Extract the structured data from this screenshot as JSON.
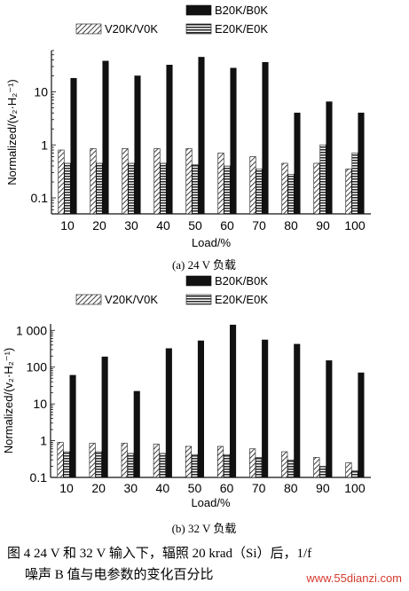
{
  "chart_data": [
    {
      "type": "bar",
      "scale": "log",
      "ylim": [
        0.05,
        60
      ],
      "yticks": [
        "0.1",
        "1",
        "10"
      ],
      "xlabel": "Load/%",
      "ylabel": "Normalized/(v₂·H₂⁻¹)",
      "caption": "(a) 24 V 负载",
      "categories": [
        "10",
        "20",
        "30",
        "40",
        "50",
        "60",
        "70",
        "80",
        "90",
        "100"
      ],
      "series": [
        {
          "name": "V20K/V0K",
          "pattern": "hatch",
          "values": [
            0.8,
            0.85,
            0.85,
            0.85,
            0.85,
            0.7,
            0.6,
            0.45,
            0.45,
            0.35
          ]
        },
        {
          "name": "E20K/E0K",
          "pattern": "stripes",
          "values": [
            0.45,
            0.45,
            0.45,
            0.45,
            0.42,
            0.4,
            0.35,
            0.28,
            1.0,
            0.7
          ]
        },
        {
          "name": "B20K/B0K",
          "pattern": "solid",
          "values": [
            18,
            38,
            20,
            32,
            45,
            28,
            36,
            4,
            6.5,
            4
          ]
        }
      ]
    },
    {
      "type": "bar",
      "scale": "log",
      "ylim": [
        0.1,
        1500
      ],
      "yticks": [
        "0.1",
        "1",
        "10",
        "100",
        "1 000"
      ],
      "xlabel": "Load/%",
      "ylabel": "Normalized/(v₂·H₂⁻¹)",
      "caption": "(b) 32 V 负载",
      "categories": [
        "10",
        "20",
        "30",
        "40",
        "50",
        "60",
        "70",
        "80",
        "90",
        "100"
      ],
      "series": [
        {
          "name": "V20K/V0K",
          "pattern": "hatch",
          "values": [
            0.9,
            0.85,
            0.85,
            0.8,
            0.7,
            0.7,
            0.6,
            0.5,
            0.35,
            0.25
          ]
        },
        {
          "name": "E20K/E0K",
          "pattern": "stripes",
          "values": [
            0.5,
            0.5,
            0.45,
            0.45,
            0.42,
            0.42,
            0.35,
            0.3,
            0.2,
            0.15
          ]
        },
        {
          "name": "B20K/B0K",
          "pattern": "solid",
          "values": [
            60,
            190,
            22,
            320,
            520,
            1400,
            550,
            420,
            150,
            70
          ]
        }
      ]
    }
  ],
  "figure_caption": {
    "line1": "图 4   24 V 和 32 V 输入下，辐照 20 krad（Si）后，1/f",
    "line2": "噪声 B 值与电参数的变化百分比"
  },
  "watermark": "www.55dianzi.com"
}
